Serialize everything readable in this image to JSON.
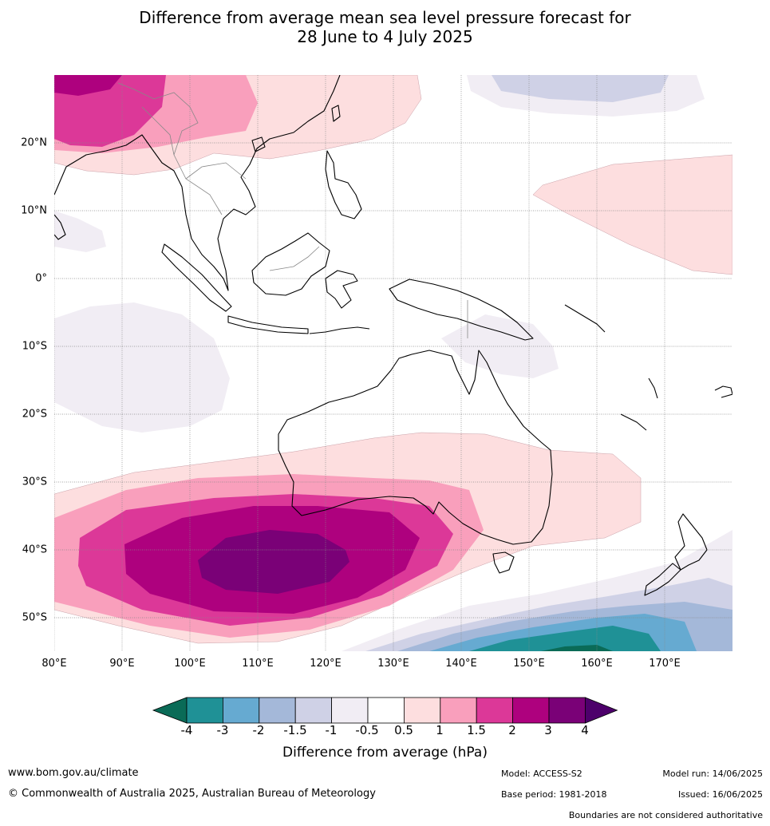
{
  "title_line1": "Difference from average mean sea level pressure forecast for",
  "title_line2": "28 June to 4 July 2025",
  "map": {
    "lat_ticks": [
      "20°N",
      "10°N",
      "0°",
      "10°S",
      "20°S",
      "30°S",
      "40°S",
      "50°S"
    ],
    "lon_ticks": [
      "80°E",
      "90°E",
      "100°E",
      "110°E",
      "120°E",
      "130°E",
      "140°E",
      "150°E",
      "160°E",
      "170°E"
    ],
    "lat_range": [
      30,
      -55
    ],
    "lon_range": [
      80,
      180
    ]
  },
  "legend": {
    "title": "Difference from average (hPa)",
    "tick_labels": [
      "-4",
      "-3",
      "-2",
      "-1.5",
      "-1",
      "-0.5",
      "0.5",
      "1",
      "1.5",
      "2",
      "3",
      "4"
    ],
    "colors": [
      "#0a6b57",
      "#1f9196",
      "#66aad1",
      "#a4b8d9",
      "#cfd1e6",
      "#f1edf4",
      "#ffffff",
      "#fddedf",
      "#f99fbc",
      "#dc3898",
      "#ae017e",
      "#7a0177",
      "#4d006b"
    ]
  },
  "footer": {
    "website": "www.bom.gov.au/climate",
    "copyright": "© Commonwealth of Australia 2025, Australian Bureau of Meteorology",
    "model": "Model: ACCESS-S2",
    "base_period": "Base period: 1981-2018",
    "model_run": "Model run: 14/06/2025",
    "issued": "Issued: 16/06/2025",
    "disclaimer": "Boundaries are not considered authoritative"
  }
}
